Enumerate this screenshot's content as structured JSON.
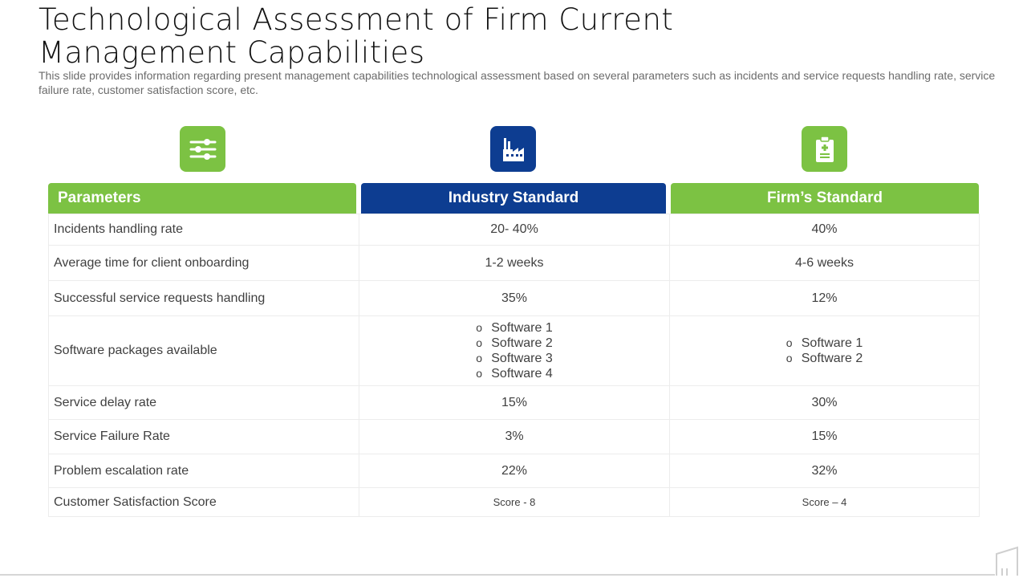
{
  "slide": {
    "title_line1": "Technological Assessment of Firm Current",
    "title_line2": "Management Capabilities",
    "subtitle": "This slide provides information regarding present management capabilities technological assessment based on several parameters such as incidents and service requests handling rate, service failure rate, customer satisfaction score, etc."
  },
  "icons": [
    {
      "name": "sliders-icon",
      "color": "#7cc243"
    },
    {
      "name": "factory-icon",
      "color": "#0d3d91"
    },
    {
      "name": "clipboard-icon",
      "color": "#7cc243"
    }
  ],
  "table": {
    "headers": [
      "Parameters",
      "Industry Standard",
      "Firm’s Standard"
    ],
    "rows": [
      {
        "parameter": "Incidents handling rate",
        "industry": "20- 40%",
        "firm": "40%"
      },
      {
        "parameter": "Average time for client onboarding",
        "industry": "1-2 weeks",
        "firm": "4-6 weeks"
      },
      {
        "parameter": "Successful service requests handling",
        "industry": "35%",
        "firm": "12%"
      },
      {
        "parameter": "Software packages available",
        "industry_list": [
          "Software 1",
          "Software 2",
          "Software 3",
          "Software 4"
        ],
        "firm_list": [
          "Software 1",
          "Software 2"
        ]
      },
      {
        "parameter": "Service delay rate",
        "industry": "15%",
        "firm": "30%"
      },
      {
        "parameter": "Service Failure Rate",
        "industry": "3%",
        "firm": "15%"
      },
      {
        "parameter": "Problem escalation rate",
        "industry": "22%",
        "firm": "32%"
      },
      {
        "parameter": "Customer Satisfaction Score",
        "industry": "Score - 8",
        "firm": "Score – 4"
      }
    ]
  },
  "colors": {
    "green": "#7cc243",
    "blue": "#0d3d91"
  }
}
